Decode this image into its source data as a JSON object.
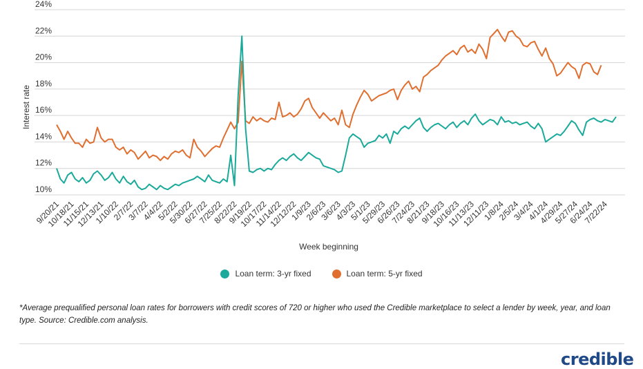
{
  "chart_data": {
    "type": "line",
    "xlabel": "Week beginning",
    "ylabel": "Interest rate",
    "ylim": [
      10,
      24
    ],
    "yticks": [
      "10%",
      "12%",
      "14%",
      "16%",
      "18%",
      "20%",
      "22%",
      "24%"
    ],
    "grid": "horizontal",
    "legend_position": "bottom",
    "x_tick_labels": [
      "9/20/21",
      "10/18/21",
      "11/15/21",
      "12/13/21",
      "1/10/22",
      "2/7/22",
      "3/7/22",
      "4/4/22",
      "5/2/22",
      "5/30/22",
      "6/27/22",
      "7/25/22",
      "8/22/22",
      "9/19/22",
      "10/17/22",
      "11/14/22",
      "12/12/22",
      "1/9/23",
      "2/6/23",
      "3/6/23",
      "4/3/23",
      "5/1/23",
      "5/29/23",
      "6/26/23",
      "7/24/23",
      "8/21/23",
      "9/18/23",
      "10/16/23",
      "11/13/23",
      "12/11/23",
      "1/8/24",
      "2/5/24",
      "3/4/24",
      "4/1/24",
      "4/29/24",
      "5/27/24",
      "6/24/24",
      "7/22/24"
    ],
    "x_tick_index": [
      0,
      4,
      8,
      12,
      16,
      20,
      24,
      28,
      32,
      36,
      40,
      44,
      48,
      52,
      56,
      60,
      64,
      68,
      72,
      76,
      80,
      84,
      88,
      92,
      96,
      100,
      104,
      108,
      112,
      116,
      120,
      124,
      128,
      132,
      136,
      140,
      144,
      148
    ],
    "series": [
      {
        "name": "Loan term: 3-yr fixed",
        "color": "#1aa99a",
        "values": [
          12.0,
          11.2,
          10.9,
          11.5,
          11.7,
          11.2,
          11.0,
          11.3,
          10.9,
          11.1,
          11.6,
          11.8,
          11.5,
          11.1,
          11.3,
          11.7,
          11.2,
          10.9,
          11.4,
          11.0,
          10.8,
          11.1,
          10.6,
          10.4,
          10.5,
          10.8,
          10.6,
          10.4,
          10.7,
          10.5,
          10.4,
          10.6,
          10.8,
          10.7,
          10.9,
          11.0,
          11.1,
          11.2,
          11.4,
          11.2,
          11.0,
          11.5,
          11.1,
          11.0,
          10.9,
          11.2,
          11.0,
          13.0,
          10.7,
          17.5,
          22.0,
          15.0,
          11.8,
          11.7,
          11.9,
          12.0,
          11.8,
          12.0,
          11.9,
          12.3,
          12.6,
          12.8,
          12.6,
          12.9,
          13.1,
          12.8,
          12.6,
          12.9,
          13.2,
          13.0,
          12.8,
          12.7,
          12.2,
          12.1,
          12.0,
          11.9,
          11.7,
          11.8,
          13.0,
          14.3,
          14.6,
          14.4,
          14.2,
          13.6,
          13.9,
          14.0,
          14.1,
          14.5,
          14.3,
          14.6,
          13.9,
          14.8,
          14.6,
          15.0,
          15.2,
          15.0,
          15.3,
          15.6,
          15.8,
          15.1,
          14.8,
          15.1,
          15.3,
          15.4,
          15.2,
          15.0,
          15.3,
          15.5,
          15.1,
          15.4,
          15.6,
          15.3,
          15.8,
          16.1,
          15.6,
          15.3,
          15.5,
          15.7,
          15.6,
          15.3,
          15.9,
          15.5,
          15.6,
          15.4,
          15.5,
          15.3,
          15.4,
          15.5,
          15.2,
          15.0,
          15.4,
          15.0,
          14.0,
          14.2,
          14.4,
          14.6,
          14.5,
          14.8,
          15.2,
          15.6,
          15.4,
          14.9,
          14.5,
          15.5,
          15.7,
          15.8,
          15.6,
          15.5,
          15.7,
          15.6,
          15.5,
          15.9
        ]
      },
      {
        "name": "Loan term: 5-yr fixed",
        "color": "#e06f2f",
        "values": [
          15.3,
          14.8,
          14.2,
          14.8,
          14.3,
          13.9,
          13.9,
          13.6,
          14.2,
          13.9,
          14.0,
          15.1,
          14.3,
          14.0,
          14.2,
          14.2,
          13.6,
          13.4,
          13.6,
          13.1,
          13.4,
          13.2,
          12.7,
          13.0,
          13.3,
          12.8,
          13.0,
          12.9,
          12.6,
          12.9,
          12.7,
          13.1,
          13.3,
          13.2,
          13.4,
          13.0,
          12.8,
          14.2,
          13.6,
          13.3,
          12.9,
          13.2,
          13.5,
          13.7,
          13.6,
          14.3,
          14.9,
          15.5,
          15.0,
          15.5,
          20.1,
          15.6,
          15.4,
          15.9,
          15.6,
          15.8,
          15.6,
          15.5,
          15.8,
          15.7,
          17.0,
          15.9,
          16.0,
          16.2,
          15.9,
          16.1,
          16.5,
          17.1,
          17.3,
          16.6,
          16.2,
          15.8,
          16.2,
          15.9,
          15.6,
          15.8,
          15.3,
          16.4,
          15.3,
          15.1,
          16.1,
          16.8,
          17.4,
          17.9,
          17.6,
          17.1,
          17.3,
          17.5,
          17.6,
          17.7,
          17.9,
          18.0,
          17.2,
          17.9,
          18.3,
          18.6,
          18.0,
          18.2,
          17.8,
          18.9,
          19.1,
          19.4,
          19.6,
          19.8,
          20.2,
          20.5,
          20.7,
          20.9,
          20.6,
          21.1,
          21.3,
          20.8,
          21.0,
          20.7,
          21.4,
          21.0,
          20.3,
          21.9,
          22.2,
          22.5,
          22.0,
          21.6,
          22.3,
          22.4,
          22.0,
          21.8,
          21.3,
          21.2,
          21.5,
          21.6,
          21.0,
          20.5,
          21.1,
          20.3,
          19.9,
          19.0,
          19.2,
          19.6,
          20.0,
          19.7,
          19.5,
          18.8,
          19.8,
          20.0,
          19.9,
          19.3,
          19.1,
          19.8
        ]
      }
    ]
  },
  "legend": {
    "item1": "Loan term: 3-yr fixed",
    "item2": "Loan term: 5-yr fixed"
  },
  "footnote": "*Average prequalified personal loan rates for borrowers with credit scores of 720 or higher who used the Credible marketplace to select a lender by week, year, and loan type. Source: Credible.com analysis.",
  "logo_text": "credible"
}
